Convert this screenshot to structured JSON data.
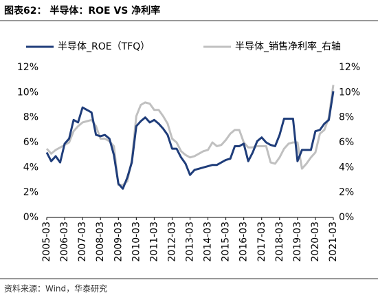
{
  "chart_data": {
    "type": "line",
    "title": "图表62：  半导体：ROE VS 净利率",
    "source": "资料来源：Wind，华泰研究",
    "categories": [
      "2005-03",
      null,
      null,
      null,
      "2006-03",
      null,
      null,
      null,
      "2007-03",
      null,
      null,
      null,
      "2008-03",
      null,
      null,
      null,
      "2009-03",
      null,
      null,
      null,
      "2010-03",
      null,
      null,
      null,
      "2011-03",
      null,
      null,
      null,
      "2012-03",
      null,
      null,
      null,
      "2013-03",
      null,
      null,
      null,
      "2014-03",
      null,
      null,
      null,
      "2015-03",
      null,
      null,
      null,
      "2016-03",
      null,
      null,
      null,
      "2017-03",
      null,
      null,
      null,
      "2018-03",
      null,
      null,
      null,
      "2019-03",
      null,
      null,
      null,
      "2020-03",
      null,
      null,
      null,
      "2021-03"
    ],
    "series": [
      {
        "name": "半导体_ROE（TFQ）",
        "color": "#1f3d7a",
        "axis": "y",
        "values": [
          5.2,
          4.5,
          4.9,
          4.4,
          5.9,
          6.3,
          7.8,
          7.6,
          8.8,
          8.6,
          8.4,
          6.6,
          6.5,
          6.6,
          6.3,
          5.0,
          2.7,
          2.3,
          3.2,
          4.4,
          7.3,
          7.7,
          8.0,
          7.6,
          7.8,
          7.5,
          7.1,
          6.6,
          5.5,
          5.5,
          4.8,
          4.3,
          3.4,
          3.8,
          3.9,
          4.0,
          4.1,
          4.2,
          4.2,
          4.4,
          4.6,
          4.7,
          5.7,
          5.7,
          5.9,
          4.5,
          5.2,
          6.1,
          6.4,
          6.0,
          5.8,
          5.7,
          6.6,
          7.9,
          7.9,
          7.9,
          4.5,
          5.4,
          5.4,
          5.4,
          6.9,
          7.0,
          7.5,
          7.8,
          10.1
        ]
      },
      {
        "name": "半导体_销售净利率_右轴",
        "color": "#c0c0c0",
        "axis": "y2",
        "values": [
          5.5,
          5.1,
          5.4,
          5.6,
          5.8,
          6.0,
          6.9,
          7.3,
          7.6,
          7.7,
          7.8,
          7.3,
          6.3,
          6.3,
          6.1,
          5.7,
          2.6,
          2.6,
          2.9,
          4.6,
          8.1,
          9.0,
          9.2,
          9.1,
          8.6,
          8.6,
          8.1,
          7.5,
          6.3,
          6.0,
          5.3,
          5.0,
          4.8,
          4.9,
          5.1,
          5.3,
          5.4,
          6.0,
          5.7,
          5.8,
          6.2,
          6.7,
          7.0,
          7.0,
          6.0,
          5.6,
          5.6,
          5.7,
          5.7,
          5.7,
          4.4,
          4.3,
          4.8,
          5.5,
          5.9,
          6.0,
          6.0,
          3.9,
          4.3,
          4.8,
          5.2,
          6.7,
          7.0,
          8.0,
          10.6
        ]
      }
    ],
    "ylim": [
      0,
      12
    ],
    "yticks": [
      {
        "value": 0,
        "label": "0%"
      },
      {
        "value": 2,
        "label": "2%"
      },
      {
        "value": 4,
        "label": "4%"
      },
      {
        "value": 6,
        "label": "6%"
      },
      {
        "value": 8,
        "label": "8%"
      },
      {
        "value": 10,
        "label": "10%"
      },
      {
        "value": 12,
        "label": "12%"
      }
    ],
    "y2lim": [
      0,
      12
    ],
    "y2ticks": [
      {
        "value": 0,
        "label": "0%"
      },
      {
        "value": 2,
        "label": "2%"
      },
      {
        "value": 4,
        "label": "4%"
      },
      {
        "value": 6,
        "label": "6%"
      },
      {
        "value": 8,
        "label": "8%"
      },
      {
        "value": 10,
        "label": "10%"
      },
      {
        "value": 12,
        "label": "12%"
      }
    ],
    "legend": "top"
  }
}
